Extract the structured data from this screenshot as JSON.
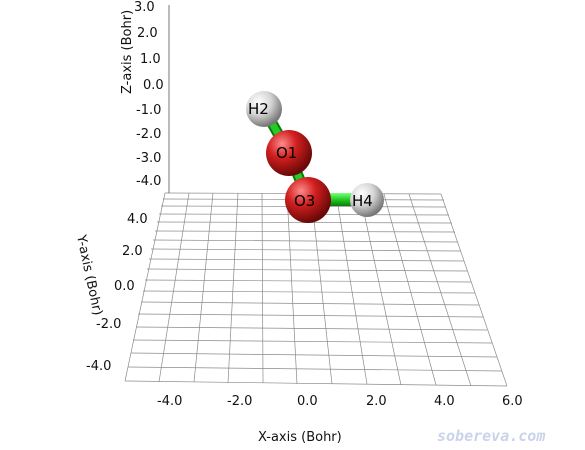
{
  "viewer": {
    "axes": {
      "x": {
        "title": "X-axis (Bohr)",
        "ticks": [
          "-4.0",
          "-2.0",
          "0.0",
          "2.0",
          "4.0",
          "6.0"
        ]
      },
      "y": {
        "title": "Y-axis (Bohr)",
        "ticks": [
          "4.0",
          "2.0",
          "0.0",
          "-2.0",
          "-4.0"
        ]
      },
      "z": {
        "title": "Z-axis (Bohr)",
        "ticks": [
          "3.0",
          "2.0",
          "1.0",
          "0.0",
          "-1.0",
          "-2.0",
          "-3.0",
          "-4.0"
        ]
      }
    },
    "atoms": [
      {
        "label": "H2",
        "element": "H",
        "color": "#d6d6d6"
      },
      {
        "label": "O1",
        "element": "O",
        "color": "#d11f1f"
      },
      {
        "label": "O3",
        "element": "O",
        "color": "#d11f1f"
      },
      {
        "label": "H4",
        "element": "H",
        "color": "#d6d6d6"
      }
    ],
    "bonds": [
      {
        "from": "H2",
        "to": "O1"
      },
      {
        "from": "O1",
        "to": "O3"
      },
      {
        "from": "O3",
        "to": "H4"
      }
    ],
    "bond_color": "#22cc22",
    "watermark": "sobereva.com"
  }
}
